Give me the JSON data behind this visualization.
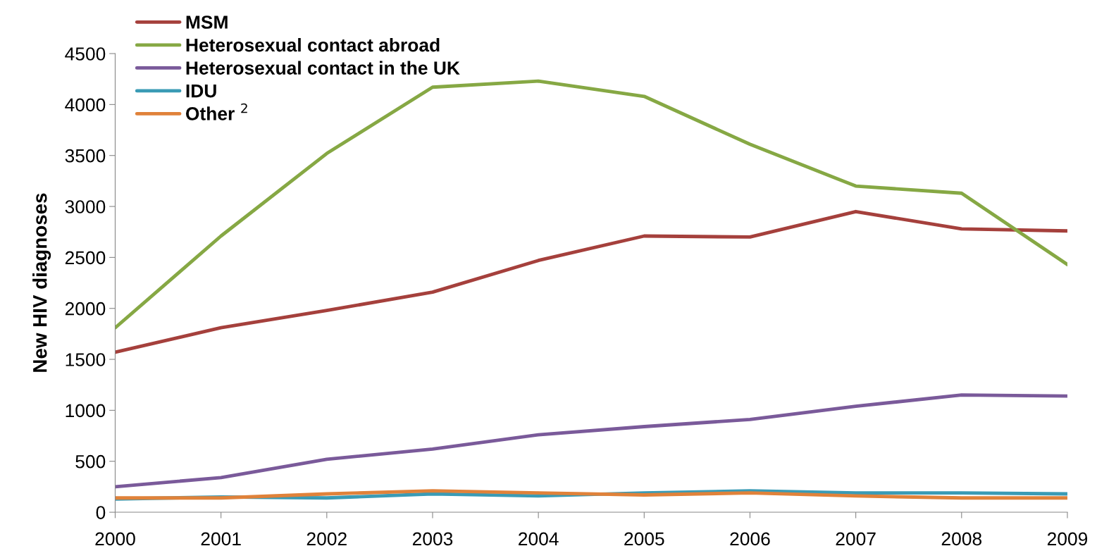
{
  "chart_data": {
    "type": "line",
    "ylabel": "New HIV diagnoses",
    "categories": [
      "2000",
      "2001",
      "2002",
      "2003",
      "2004",
      "2005",
      "2006",
      "2007",
      "2008",
      "2009"
    ],
    "series": [
      {
        "name": "MSM",
        "color": "#a5403c",
        "values": [
          1570,
          1810,
          1980,
          2160,
          2470,
          2710,
          2700,
          2950,
          2780,
          2760
        ]
      },
      {
        "name": "Heterosexual contact abroad",
        "color": "#86a844",
        "values": [
          1810,
          2710,
          3520,
          4170,
          4230,
          4080,
          3610,
          3200,
          3130,
          2430
        ]
      },
      {
        "name": "Heterosexual contact in the UK",
        "color": "#7a5a9a",
        "values": [
          250,
          340,
          520,
          620,
          760,
          840,
          910,
          1040,
          1150,
          1140
        ]
      },
      {
        "name": "IDU",
        "color": "#3a9bb5",
        "values": [
          130,
          150,
          140,
          180,
          160,
          190,
          210,
          190,
          190,
          180
        ]
      },
      {
        "name": "Other $^{2}$",
        "color": "#e0823a",
        "values": [
          140,
          140,
          180,
          210,
          190,
          170,
          190,
          160,
          140,
          140
        ]
      }
    ],
    "ylim": [
      0,
      4500
    ],
    "yticks": [
      0,
      500,
      1000,
      1500,
      2000,
      2500,
      3000,
      3500,
      4000,
      4500
    ],
    "grid": false,
    "legend": "top left",
    "marker": "none",
    "line_style": "solid"
  }
}
